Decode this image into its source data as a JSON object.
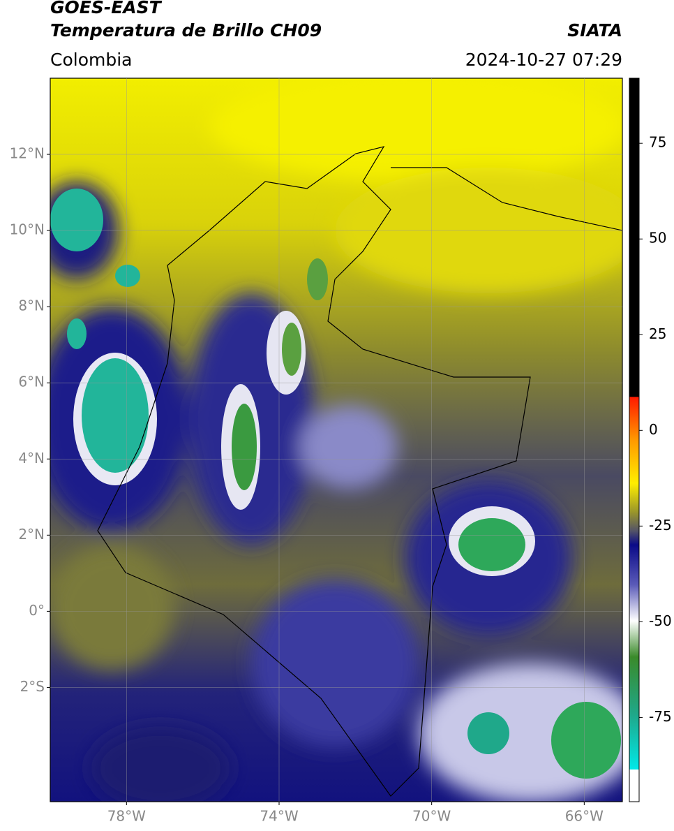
{
  "header": {
    "title": "GOES-EAST",
    "subtitle": "Temperatura de Brillo CH09",
    "source": "SIATA",
    "region": "Colombia",
    "timestamp": "2024-10-27 07:29"
  },
  "map": {
    "xlim": [
      -80,
      -65
    ],
    "ylim": [
      -5,
      14
    ],
    "xticks": [
      {
        "value": -78,
        "label": "78°W"
      },
      {
        "value": -74,
        "label": "74°W"
      },
      {
        "value": -70,
        "label": "70°W"
      },
      {
        "value": -66,
        "label": "66°W"
      }
    ],
    "yticks": [
      {
        "value": 12,
        "label": "12°N"
      },
      {
        "value": 10,
        "label": "10°N"
      },
      {
        "value": 8,
        "label": "8°N"
      },
      {
        "value": 6,
        "label": "6°N"
      },
      {
        "value": 4,
        "label": "4°N"
      },
      {
        "value": 2,
        "label": "2°N"
      },
      {
        "value": 0,
        "label": "0°"
      },
      {
        "value": -2,
        "label": "2°S"
      }
    ],
    "grid": true
  },
  "colorbar": {
    "lim": [
      -97,
      92
    ],
    "ticks": [
      75,
      50,
      25,
      0,
      -25,
      -50,
      -75
    ]
  }
}
